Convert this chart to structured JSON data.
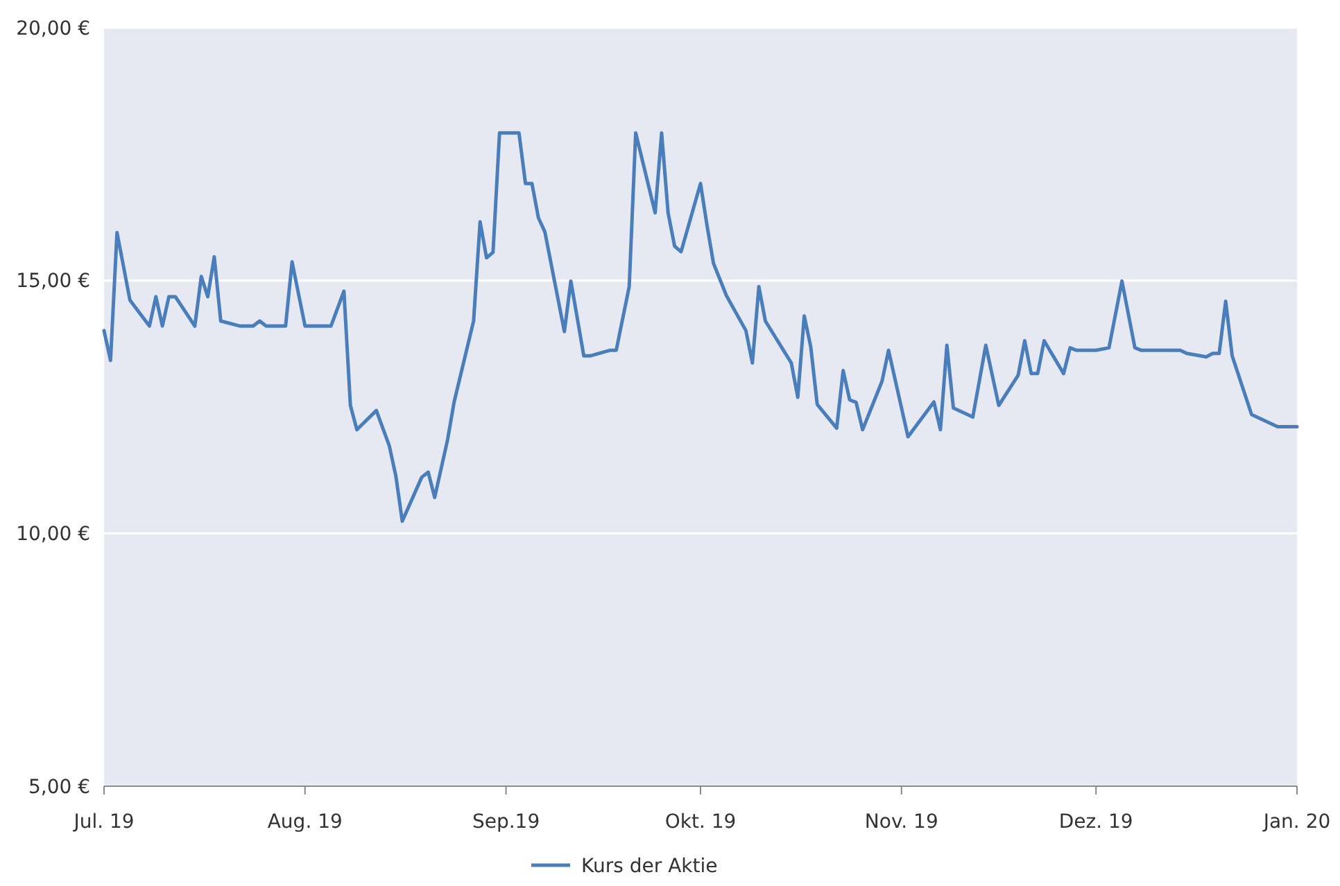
{
  "chart_data": {
    "type": "line",
    "xlim": [
      "2019-07-01",
      "2020-01-01"
    ],
    "xticks": [
      {
        "value": "2019-07-01",
        "label": "Jul. 19"
      },
      {
        "value": "2019-08-01",
        "label": "Aug. 19"
      },
      {
        "value": "2019-09-01",
        "label": "Sep.19"
      },
      {
        "value": "2019-10-01",
        "label": "Okt. 19"
      },
      {
        "value": "2019-11-01",
        "label": "Nov. 19"
      },
      {
        "value": "2019-12-01",
        "label": "Dez. 19"
      },
      {
        "value": "2020-01-01",
        "label": "Jan. 20"
      }
    ],
    "ylim": [
      5,
      20
    ],
    "yticks": [
      {
        "value": 5,
        "label": "5,00 €"
      },
      {
        "value": 10,
        "label": "10,00 €"
      },
      {
        "value": 15,
        "label": "15,00 €"
      },
      {
        "value": 20,
        "label": "20,00 €"
      }
    ],
    "grid": "y",
    "legend": "bottom",
    "marker": "none",
    "line_style": "solid",
    "series": [
      {
        "name": "Kurs der Aktie",
        "color": "#4a7ebb",
        "x": [
          "2019-07-01",
          "2019-07-02",
          "2019-07-03",
          "2019-07-05",
          "2019-07-08",
          "2019-07-09",
          "2019-07-10",
          "2019-07-11",
          "2019-07-12",
          "2019-07-15",
          "2019-07-16",
          "2019-07-17",
          "2019-07-18",
          "2019-07-19",
          "2019-07-22",
          "2019-07-24",
          "2019-07-25",
          "2019-07-26",
          "2019-07-29",
          "2019-07-30",
          "2019-08-01",
          "2019-08-05",
          "2019-08-07",
          "2019-08-08",
          "2019-08-09",
          "2019-08-12",
          "2019-08-14",
          "2019-08-15",
          "2019-08-16",
          "2019-08-19",
          "2019-08-20",
          "2019-08-21",
          "2019-08-23",
          "2019-08-24",
          "2019-08-27",
          "2019-08-28",
          "2019-08-29",
          "2019-08-30",
          "2019-08-31",
          "2019-09-03",
          "2019-09-04",
          "2019-09-05",
          "2019-09-06",
          "2019-09-07",
          "2019-09-10",
          "2019-09-11",
          "2019-09-13",
          "2019-09-14",
          "2019-09-17",
          "2019-09-18",
          "2019-09-20",
          "2019-09-21",
          "2019-09-24",
          "2019-09-25",
          "2019-09-26",
          "2019-09-27",
          "2019-09-28",
          "2019-10-01",
          "2019-10-02",
          "2019-10-03",
          "2019-10-05",
          "2019-10-08",
          "2019-10-09",
          "2019-10-10",
          "2019-10-11",
          "2019-10-15",
          "2019-10-16",
          "2019-10-17",
          "2019-10-18",
          "2019-10-19",
          "2019-10-22",
          "2019-10-23",
          "2019-10-24",
          "2019-10-25",
          "2019-10-26",
          "2019-10-29",
          "2019-10-30",
          "2019-11-02",
          "2019-11-06",
          "2019-11-07",
          "2019-11-08",
          "2019-11-09",
          "2019-11-12",
          "2019-11-14",
          "2019-11-16",
          "2019-11-19",
          "2019-11-20",
          "2019-11-21",
          "2019-11-22",
          "2019-11-23",
          "2019-11-26",
          "2019-11-27",
          "2019-11-28",
          "2019-12-01",
          "2019-12-03",
          "2019-12-05",
          "2019-12-07",
          "2019-12-08",
          "2019-12-14",
          "2019-12-15",
          "2019-12-18",
          "2019-12-19",
          "2019-12-20",
          "2019-12-21",
          "2019-12-22",
          "2019-12-25",
          "2019-12-29",
          "2020-01-01"
        ],
        "values": [
          14.01,
          13.42,
          15.95,
          14.61,
          14.1,
          14.68,
          14.1,
          14.68,
          14.68,
          14.1,
          15.08,
          14.68,
          15.47,
          14.2,
          14.1,
          14.1,
          14.2,
          14.1,
          14.1,
          15.37,
          14.1,
          14.1,
          14.79,
          12.53,
          12.05,
          12.43,
          11.73,
          11.14,
          10.24,
          11.11,
          11.21,
          10.71,
          11.86,
          12.6,
          14.2,
          16.16,
          15.45,
          15.56,
          17.92,
          17.92,
          16.92,
          16.92,
          16.24,
          15.96,
          13.99,
          14.99,
          13.51,
          13.51,
          13.62,
          13.62,
          14.88,
          17.92,
          16.34,
          17.92,
          16.34,
          15.68,
          15.57,
          16.92,
          16.09,
          15.34,
          14.7,
          14.01,
          13.37,
          14.88,
          14.2,
          13.37,
          12.69,
          14.3,
          13.69,
          12.55,
          12.08,
          13.22,
          12.64,
          12.59,
          12.05,
          13.01,
          13.62,
          11.91,
          12.6,
          12.05,
          13.72,
          12.48,
          12.3,
          13.72,
          12.53,
          13.13,
          13.81,
          13.16,
          13.16,
          13.81,
          13.16,
          13.67,
          13.62,
          13.62,
          13.67,
          14.99,
          13.67,
          13.62,
          13.62,
          13.56,
          13.49,
          13.56,
          13.56,
          14.59,
          13.51,
          12.35,
          12.11,
          12.11
        ]
      }
    ]
  }
}
